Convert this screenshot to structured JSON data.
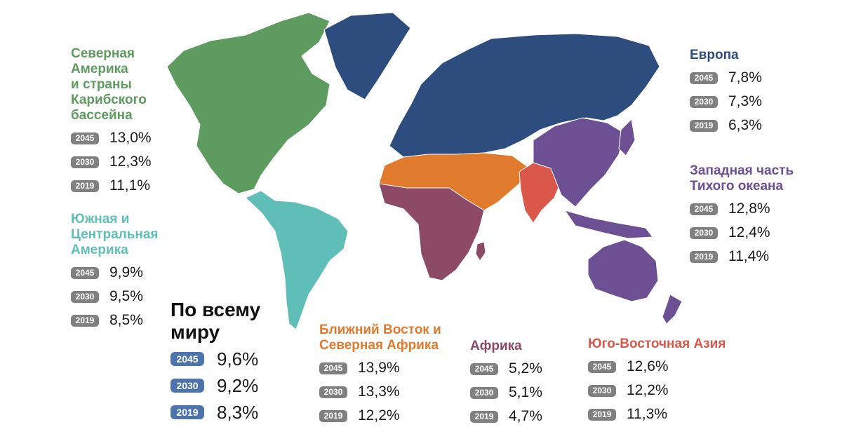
{
  "colors": {
    "north_america": "#5e9b5f",
    "south_america": "#5fbfb8",
    "europe": "#2c4d7d",
    "mena": "#e07b2e",
    "africa": "#8c4a67",
    "western_pacific": "#6d4f93",
    "southeast_asia": "#d9584a",
    "world": "#111111",
    "badge": "#808080",
    "badge_world": "#4d73ad",
    "value_text": "#1a1a1a"
  },
  "regions": {
    "north_america": {
      "title": "Северная\nАмерика\nи страны\nКарибского\nбассейна",
      "rows": [
        {
          "year": "2045",
          "value": "13,0%"
        },
        {
          "year": "2030",
          "value": "12,3%"
        },
        {
          "year": "2019",
          "value": "11,1%"
        }
      ]
    },
    "south_america": {
      "title": "Южная и\nЦентральная\nАмерика",
      "rows": [
        {
          "year": "2045",
          "value": "9,9%"
        },
        {
          "year": "2030",
          "value": "9,5%"
        },
        {
          "year": "2019",
          "value": "8,5%"
        }
      ]
    },
    "world": {
      "title": "По всему\nмиру",
      "rows": [
        {
          "year": "2045",
          "value": "9,6%"
        },
        {
          "year": "2030",
          "value": "9,2%"
        },
        {
          "year": "2019",
          "value": "8,3%"
        }
      ]
    },
    "mena": {
      "title": "Ближний Восток и\nСеверная Африка",
      "rows": [
        {
          "year": "2045",
          "value": "13,9%"
        },
        {
          "year": "2030",
          "value": "13,3%"
        },
        {
          "year": "2019",
          "value": "12,2%"
        }
      ]
    },
    "africa": {
      "title": "Африка",
      "rows": [
        {
          "year": "2045",
          "value": "5,2%"
        },
        {
          "year": "2030",
          "value": "5,1%"
        },
        {
          "year": "2019",
          "value": "4,7%"
        }
      ]
    },
    "southeast_asia": {
      "title": "Юго-Восточная Азия",
      "rows": [
        {
          "year": "2045",
          "value": "12,6%"
        },
        {
          "year": "2030",
          "value": "12,2%"
        },
        {
          "year": "2019",
          "value": "11,3%"
        }
      ]
    },
    "europe": {
      "title": "Европа",
      "rows": [
        {
          "year": "2045",
          "value": "7,8%"
        },
        {
          "year": "2030",
          "value": "7,3%"
        },
        {
          "year": "2019",
          "value": "6,3%"
        }
      ]
    },
    "western_pacific": {
      "title": "Западная часть\nТихого океана",
      "rows": [
        {
          "year": "2045",
          "value": "12,8%"
        },
        {
          "year": "2030",
          "value": "12,4%"
        },
        {
          "year": "2019",
          "value": "11,4%"
        }
      ]
    }
  }
}
